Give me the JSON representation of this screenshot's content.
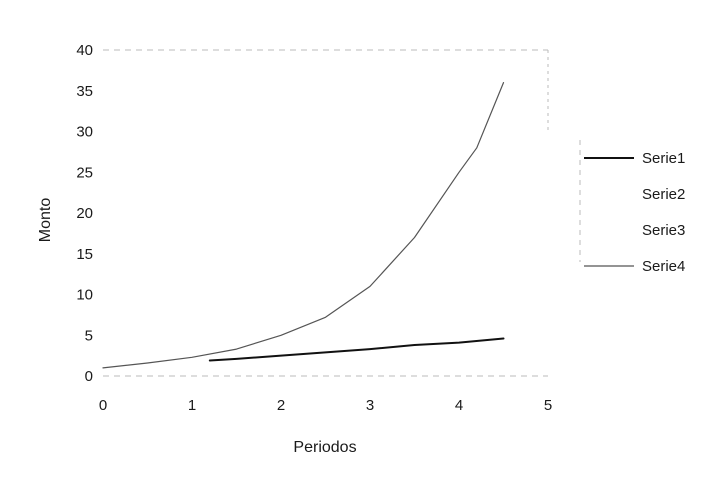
{
  "chart_data": {
    "type": "line",
    "title": "",
    "xlabel": "Periodos",
    "ylabel": "Monto",
    "xlim": [
      0,
      5
    ],
    "ylim": [
      0,
      40
    ],
    "x_ticks": [
      "0",
      "1",
      "2",
      "3",
      "4",
      "5"
    ],
    "y_ticks": [
      "0",
      "5",
      "10",
      "15",
      "20",
      "25",
      "30",
      "35",
      "40"
    ],
    "grid": false,
    "legend_position": "right",
    "series": [
      {
        "name": "Serie1",
        "color": "#111111",
        "x": [
          1.2,
          1.5,
          2.0,
          2.5,
          3.0,
          3.5,
          4.0,
          4.5
        ],
        "y": [
          1.9,
          2.1,
          2.5,
          2.9,
          3.3,
          3.8,
          4.1,
          4.6
        ]
      },
      {
        "name": "Serie2",
        "color": "#ffffff",
        "x": [],
        "y": []
      },
      {
        "name": "Serie3",
        "color": "#ffffff",
        "x": [],
        "y": []
      },
      {
        "name": "Serie4",
        "color": "#555555",
        "x": [
          0,
          0.5,
          1.0,
          1.5,
          2.0,
          2.5,
          3.0,
          3.5,
          4.0,
          4.2,
          4.5
        ],
        "y": [
          1.0,
          1.6,
          2.3,
          3.3,
          5.0,
          7.2,
          11.0,
          17.0,
          25.0,
          28.0,
          36.0
        ]
      }
    ]
  }
}
